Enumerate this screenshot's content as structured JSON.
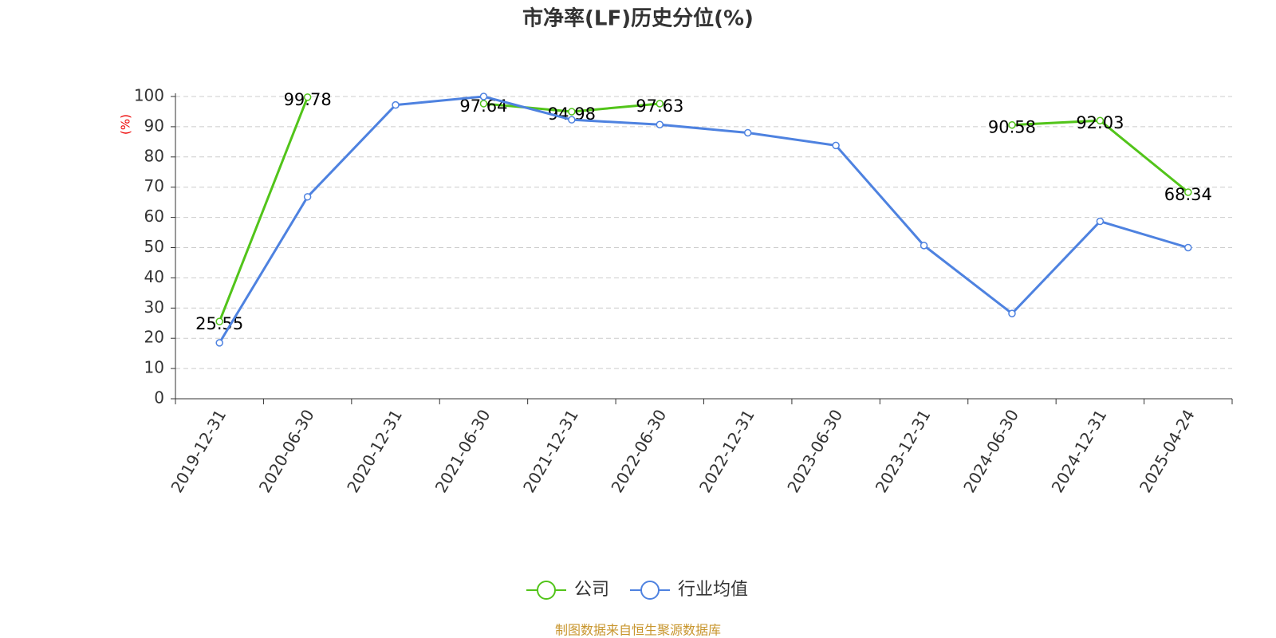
{
  "chart_data": {
    "type": "line",
    "title": "市净率(LF)历史分位(%)",
    "y_label": "(%)",
    "categories": [
      "2019-12-31",
      "2020-06-30",
      "2020-12-31",
      "2021-06-30",
      "2021-12-31",
      "2022-06-30",
      "2022-12-31",
      "2023-06-30",
      "2023-12-31",
      "2024-06-30",
      "2024-12-31",
      "2025-04-24"
    ],
    "series": [
      {
        "name": "公司",
        "color": "#52c41a",
        "values": [
          25.55,
          99.78,
          null,
          97.64,
          94.98,
          97.63,
          null,
          null,
          null,
          90.58,
          92.03,
          68.34
        ],
        "data_labels": true
      },
      {
        "name": "行业均值",
        "color": "#4e82e0",
        "values": [
          18.5,
          66.8,
          97.2,
          100,
          92.3,
          90.7,
          88,
          83.8,
          50.7,
          28.2,
          58.7,
          50
        ]
      }
    ],
    "ylim": [
      0,
      100
    ],
    "yticks": [
      0,
      10,
      20,
      30,
      40,
      50,
      60,
      70,
      80,
      90,
      100
    ],
    "grid": true,
    "footer": "制图数据来自恒生聚源数据库"
  }
}
